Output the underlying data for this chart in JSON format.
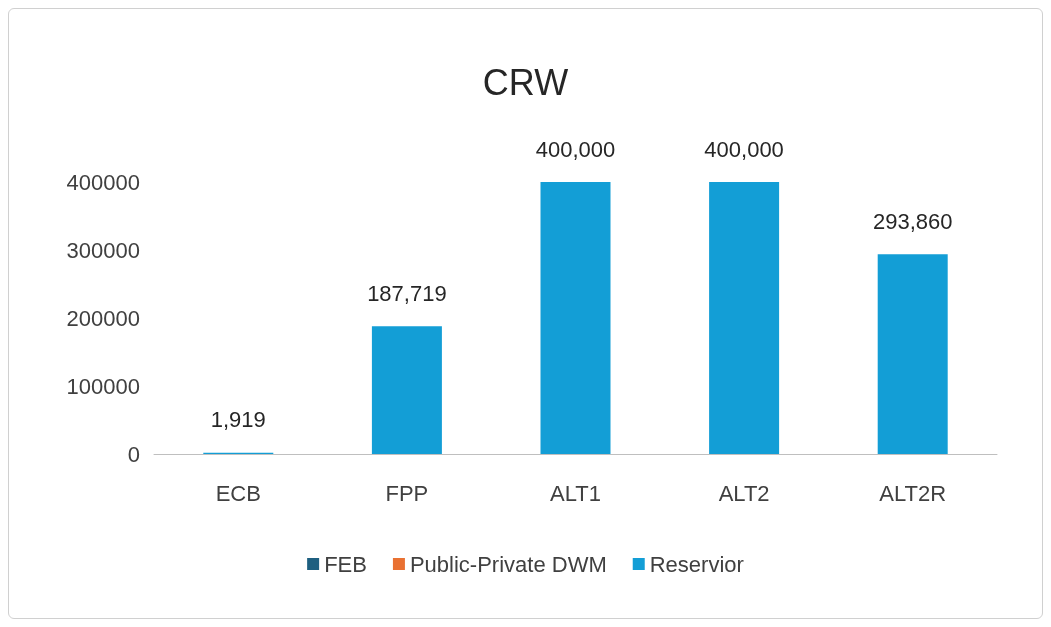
{
  "chart_data": {
    "type": "bar",
    "title": "CRW",
    "categories": [
      "ECB",
      "FPP",
      "ALT1",
      "ALT2",
      "ALT2R"
    ],
    "series": [
      {
        "name": "FEB",
        "color": "#1e5f80",
        "values": [
          null,
          null,
          null,
          null,
          null
        ]
      },
      {
        "name": "Public-Private DWM",
        "color": "#e97132",
        "values": [
          null,
          null,
          null,
          null,
          null
        ]
      },
      {
        "name": "Reservior",
        "color": "#139ed6",
        "values": [
          1919,
          187719,
          400000,
          400000,
          293860
        ],
        "value_labels": [
          "1,919",
          "187,719",
          "400,000",
          "400,000",
          "293,860"
        ]
      }
    ],
    "stacked": true,
    "ylim": [
      0,
      400000
    ],
    "yticks": [
      0,
      100000,
      200000,
      300000,
      400000
    ],
    "grid": false,
    "legend": "bottom"
  }
}
